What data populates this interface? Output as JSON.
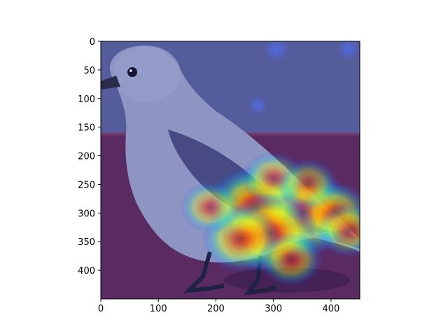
{
  "figure": {
    "type": "image-heatmap-overlay",
    "subject": "bird-photo",
    "image_extent": {
      "x": [
        0,
        450
      ],
      "y": [
        0,
        450
      ]
    },
    "x_ticks": [
      0,
      100,
      200,
      300,
      400
    ],
    "y_ticks": [
      0,
      50,
      100,
      150,
      200,
      250,
      300,
      350,
      400
    ],
    "x_tick_labels": [
      "0",
      "100",
      "200",
      "300",
      "400"
    ],
    "y_tick_labels": [
      "0",
      "50",
      "100",
      "150",
      "200",
      "250",
      "300",
      "350",
      "400"
    ],
    "colormap": "jet",
    "colors": {
      "sky_overlay": "#545c9c",
      "table_overlay": "#5a2b63",
      "bird_body": "#8e95c2",
      "bird_shadow": "#474a83",
      "legs": "#1f2242"
    },
    "heat_spots": [
      {
        "x": 350,
        "y": 300,
        "intensity": 1.0
      },
      {
        "x": 270,
        "y": 290,
        "intensity": 0.9
      },
      {
        "x": 295,
        "y": 335,
        "intensity": 0.85
      },
      {
        "x": 245,
        "y": 345,
        "intensity": 0.6
      },
      {
        "x": 405,
        "y": 300,
        "intensity": 0.5
      },
      {
        "x": 300,
        "y": 240,
        "intensity": 0.35
      },
      {
        "x": 360,
        "y": 250,
        "intensity": 0.3
      },
      {
        "x": 190,
        "y": 290,
        "intensity": 0.3
      },
      {
        "x": 430,
        "y": 330,
        "intensity": 0.35
      },
      {
        "x": 330,
        "y": 380,
        "intensity": 0.35
      }
    ]
  }
}
